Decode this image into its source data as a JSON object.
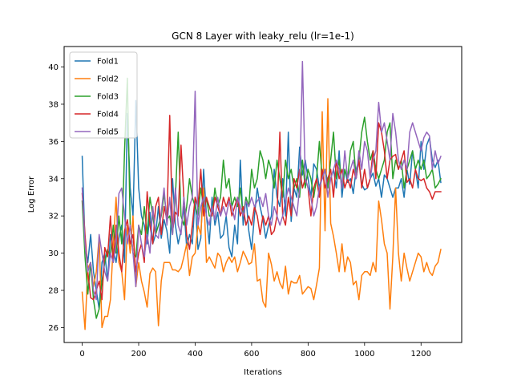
{
  "chart_data": {
    "type": "line",
    "title": "GCN 8 Layer with leaky_relu (lr=1e-1)",
    "xlabel": "Iterations",
    "ylabel": "Log Error",
    "xlim": [
      -64,
      1344
    ],
    "ylim": [
      25.2,
      41.1
    ],
    "xticks": [
      0,
      200,
      400,
      600,
      800,
      1000,
      1200
    ],
    "yticks": [
      26,
      28,
      30,
      32,
      34,
      36,
      38,
      40
    ],
    "legend_position": "top-left",
    "x": [
      0,
      10,
      20,
      30,
      40,
      50,
      60,
      70,
      80,
      90,
      100,
      110,
      120,
      130,
      140,
      150,
      160,
      170,
      180,
      190,
      200,
      210,
      220,
      230,
      240,
      250,
      260,
      270,
      280,
      290,
      300,
      310,
      320,
      330,
      340,
      350,
      360,
      370,
      380,
      390,
      400,
      410,
      420,
      430,
      440,
      450,
      460,
      470,
      480,
      490,
      500,
      510,
      520,
      530,
      540,
      550,
      560,
      570,
      580,
      590,
      600,
      610,
      620,
      630,
      640,
      650,
      660,
      670,
      680,
      690,
      700,
      710,
      720,
      730,
      740,
      750,
      760,
      770,
      780,
      790,
      800,
      810,
      820,
      830,
      840,
      850,
      860,
      870,
      880,
      890,
      900,
      910,
      920,
      930,
      940,
      950,
      960,
      970,
      980,
      990,
      1000,
      1010,
      1020,
      1030,
      1040,
      1050,
      1060,
      1070,
      1080,
      1090,
      1100,
      1110,
      1120,
      1130,
      1140,
      1150,
      1160,
      1170,
      1180,
      1190,
      1200,
      1210,
      1220,
      1230,
      1240,
      1250,
      1260,
      1270
    ],
    "series": [
      {
        "name": "Fold1",
        "color": "#1f77b4",
        "values": [
          35.2,
          30.5,
          29.5,
          31.0,
          29.0,
          28.0,
          27.0,
          29.5,
          30.0,
          28.5,
          31.0,
          30.2,
          29.5,
          30.8,
          31.5,
          29.5,
          37.5,
          33.5,
          32.0,
          38.2,
          33.5,
          32.0,
          31.5,
          30.5,
          32.2,
          30.5,
          31.0,
          32.5,
          30.8,
          31.8,
          31.2,
          30.0,
          34.0,
          31.5,
          30.5,
          31.2,
          32.5,
          30.3,
          31.0,
          30.5,
          33.0,
          30.2,
          30.8,
          34.5,
          32.0,
          30.5,
          33.0,
          31.5,
          32.2,
          30.8,
          31.0,
          32.0,
          30.3,
          29.8,
          31.5,
          30.5,
          35.0,
          31.5,
          33.0,
          31.2,
          30.2,
          32.0,
          33.5,
          32.5,
          31.8,
          30.8,
          31.5,
          32.0,
          34.5,
          33.0,
          32.5,
          34.0,
          32.0,
          36.5,
          31.7,
          33.5,
          33.0,
          35.7,
          34.2,
          35.0,
          34.0,
          33.0,
          34.8,
          34.5,
          33.5,
          34.2,
          34.5,
          33.8,
          34.0,
          34.5,
          33.5,
          35.5,
          33.0,
          34.5,
          33.8,
          34.0,
          33.2,
          34.5,
          35.0,
          33.7,
          33.4,
          33.5,
          34.0,
          34.3,
          33.6,
          34.0,
          33.0,
          34.2,
          34.0,
          33.5,
          33.0,
          33.5,
          33.5,
          34.0,
          33.0,
          34.5,
          33.7,
          35.5,
          34.5,
          33.5,
          36.0,
          34.5,
          35.8,
          36.2,
          35.0,
          34.6,
          35.0,
          33.8
        ]
      },
      {
        "name": "Fold2",
        "color": "#ff7f0e",
        "values": [
          27.9,
          25.9,
          29.2,
          29.5,
          28.2,
          29.0,
          30.9,
          26.0,
          26.6,
          26.6,
          27.5,
          30.5,
          33.0,
          29.5,
          29.0,
          27.5,
          31.5,
          30.0,
          32.0,
          28.2,
          29.5,
          28.5,
          27.9,
          27.1,
          28.9,
          29.2,
          29.0,
          26.1,
          28.5,
          29.5,
          29.5,
          29.5,
          29.1,
          29.1,
          29.0,
          29.2,
          29.8,
          30.5,
          28.8,
          29.8,
          30.0,
          31.5,
          31.0,
          33.5,
          29.5,
          29.8,
          29.5,
          29.2,
          30.0,
          29.8,
          29.0,
          29.5,
          29.8,
          29.5,
          29.8,
          29.0,
          29.5,
          30.1,
          29.8,
          29.4,
          29.5,
          30.5,
          28.5,
          28.6,
          27.4,
          27.1,
          30.0,
          29.4,
          28.5,
          29.0,
          28.4,
          28.1,
          29.3,
          27.8,
          28.5,
          28.4,
          28.4,
          28.8,
          27.8,
          28.0,
          28.2,
          28.1,
          27.5,
          28.3,
          29.2,
          37.6,
          31.2,
          38.3,
          31.6,
          30.9,
          30.0,
          29.0,
          30.5,
          29.0,
          29.8,
          29.5,
          28.3,
          28.5,
          27.5,
          28.8,
          29.0,
          29.0,
          28.8,
          29.5,
          29.0,
          32.8,
          31.8,
          30.5,
          30.0,
          27.0,
          29.8,
          33.5,
          30.0,
          28.5,
          30.0,
          29.2,
          28.5,
          29.0,
          29.5,
          30.0,
          29.8,
          29.0,
          29.5,
          29.0,
          28.8,
          29.3,
          29.5,
          30.2
        ]
      },
      {
        "name": "Fold3",
        "color": "#2ca02c",
        "values": [
          32.8,
          29.8,
          27.8,
          29.5,
          27.5,
          26.5,
          27.0,
          28.5,
          29.5,
          30.2,
          29.8,
          31.5,
          30.0,
          32.0,
          30.5,
          35.5,
          39.4,
          31.5,
          30.0,
          29.8,
          31.5,
          31.0,
          32.5,
          31.0,
          33.0,
          32.0,
          31.0,
          31.5,
          32.0,
          33.2,
          31.8,
          32.0,
          31.0,
          33.0,
          36.5,
          32.0,
          31.5,
          32.5,
          34.0,
          33.0,
          32.5,
          32.0,
          33.5,
          32.5,
          33.0,
          32.0,
          32.0,
          33.5,
          32.5,
          33.0,
          35.0,
          33.5,
          34.0,
          32.5,
          33.0,
          32.5,
          33.5,
          32.0,
          33.0,
          32.5,
          34.5,
          33.5,
          34.0,
          35.5,
          35.0,
          34.0,
          35.0,
          34.5,
          33.5,
          35.0,
          34.0,
          33.0,
          35.0,
          34.0,
          34.5,
          33.5,
          34.0,
          33.0,
          35.0,
          33.5,
          34.5,
          34.0,
          33.0,
          34.0,
          36.0,
          34.0,
          34.5,
          33.5,
          35.0,
          36.5,
          34.0,
          35.0,
          33.5,
          34.5,
          34.0,
          35.5,
          36.0,
          34.0,
          35.0,
          36.5,
          37.3,
          36.0,
          35.0,
          35.5,
          34.5,
          34.0,
          34.5,
          35.0,
          36.5,
          37.0,
          34.0,
          35.0,
          34.5,
          35.0,
          33.5,
          34.5,
          35.0,
          35.5,
          34.5,
          35.0,
          34.5,
          35.0,
          34.0,
          34.2,
          34.5,
          33.5,
          33.7,
          34.0
        ]
      },
      {
        "name": "Fold4",
        "color": "#d62728",
        "values": [
          33.2,
          31.0,
          29.0,
          27.6,
          27.5,
          28.0,
          28.5,
          27.5,
          30.3,
          29.8,
          32.0,
          29.5,
          31.5,
          30.0,
          29.0,
          31.2,
          31.8,
          30.5,
          31.0,
          29.0,
          30.0,
          30.5,
          29.5,
          33.3,
          31.5,
          30.5,
          32.5,
          33.0,
          31.0,
          32.5,
          31.8,
          37.4,
          31.2,
          32.2,
          32.0,
          35.8,
          33.0,
          31.0,
          30.2,
          31.5,
          33.0,
          32.5,
          34.5,
          32.0,
          33.0,
          32.5,
          32.0,
          33.0,
          32.5,
          32.0,
          33.0,
          32.5,
          33.0,
          32.0,
          32.5,
          33.0,
          32.0,
          32.5,
          31.5,
          32.0,
          31.5,
          32.5,
          32.0,
          31.0,
          32.0,
          31.5,
          32.0,
          31.0,
          31.2,
          32.0,
          36.5,
          32.0,
          31.5,
          33.0,
          32.0,
          34.0,
          33.5,
          34.5,
          33.5,
          34.0,
          33.5,
          32.0,
          33.5,
          34.0,
          33.0,
          34.5,
          33.5,
          34.0,
          34.5,
          33.0,
          35.0,
          34.0,
          34.5,
          33.5,
          34.0,
          33.5,
          34.5,
          34.0,
          35.0,
          33.5,
          34.5,
          33.5,
          34.0,
          35.5,
          34.0,
          37.0,
          36.5,
          35.5,
          34.0,
          35.0,
          35.2,
          35.3,
          34.5,
          35.0,
          35.5,
          33.8,
          34.0,
          33.5,
          34.5,
          34.0,
          33.9,
          34.0,
          33.5,
          33.3,
          32.9,
          33.3,
          33.3,
          33.3
        ]
      },
      {
        "name": "Fold5",
        "color": "#9467bd",
        "values": [
          33.5,
          30.5,
          29.0,
          29.5,
          28.0,
          27.5,
          31.0,
          30.0,
          29.0,
          28.5,
          30.0,
          29.5,
          30.5,
          33.2,
          33.5,
          32.0,
          30.5,
          31.5,
          30.0,
          28.2,
          31.5,
          30.5,
          29.8,
          31.0,
          30.0,
          32.5,
          31.0,
          30.8,
          32.2,
          33.5,
          31.5,
          33.0,
          31.0,
          33.5,
          31.5,
          31.0,
          33.0,
          31.5,
          32.5,
          33.0,
          38.7,
          31.5,
          32.5,
          33.0,
          32.0,
          31.5,
          32.5,
          31.8,
          33.0,
          32.0,
          32.5,
          32.0,
          32.8,
          32.5,
          31.8,
          33.0,
          32.5,
          32.0,
          32.8,
          32.5,
          33.0,
          32.5,
          32.8,
          33.0,
          32.5,
          33.2,
          32.0,
          31.5,
          32.5,
          32.0,
          31.5,
          32.0,
          32.8,
          33.5,
          33.0,
          32.5,
          32.0,
          33.5,
          40.3,
          34.0,
          33.5,
          33.0,
          32.0,
          32.5,
          33.5,
          34.0,
          34.5,
          33.0,
          34.0,
          34.5,
          35.0,
          34.5,
          33.5,
          35.5,
          34.0,
          34.5,
          35.0,
          34.0,
          35.5,
          34.5,
          36.0,
          35.5,
          34.0,
          35.0,
          35.5,
          38.1,
          36.5,
          37.0,
          36.0,
          35.0,
          37.5,
          36.5,
          35.0,
          34.5,
          35.0,
          34.5,
          36.5,
          37.0,
          36.5,
          36.0,
          35.5,
          36.2,
          36.5,
          36.3,
          34.5,
          35.5,
          34.8,
          35.2
        ]
      }
    ]
  }
}
